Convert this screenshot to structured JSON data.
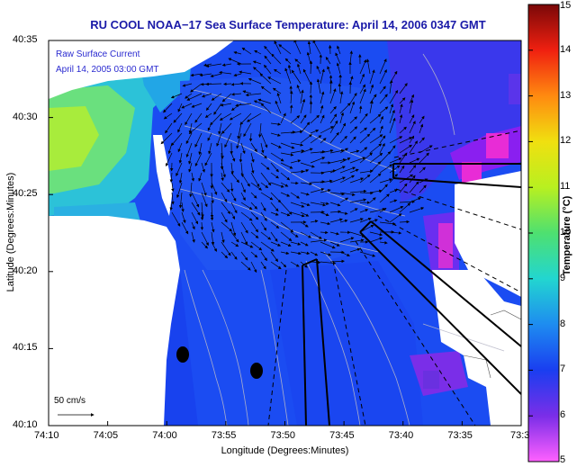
{
  "title": "RU COOL  NOAA−17  Sea Surface Temperature:  April 14, 2006 0347 GMT",
  "legend": {
    "line1": "Raw Surface Current",
    "line2": "April 14, 2005 03:00 GMT",
    "scale_label": "50 cm/s"
  },
  "axes": {
    "xlabel": "Longitude (Degrees:Minutes)",
    "ylabel": "Latitude (Degrees:Minutes)",
    "x_ticks": [
      "74:10",
      "74:05",
      "74:00",
      "73:55",
      "73:50",
      "73:45",
      "73:40",
      "73:35",
      "73:3"
    ],
    "y_ticks": [
      "40:35",
      "40:30",
      "40:25",
      "40:20",
      "40:15",
      "40:10"
    ]
  },
  "colorbar": {
    "label": "Temperature (°C)",
    "ticks": [
      "15",
      "14",
      "13",
      "12",
      "11",
      "10",
      "9",
      "8",
      "7",
      "6",
      "5"
    ],
    "range": [
      5,
      15
    ]
  },
  "colors": {
    "land": "#ffffff",
    "title": "#1a1aa8",
    "legend_text": "#2a2ad0",
    "ocean_base": "#1b4cf2",
    "plume": "#8a1ff0",
    "hotspot": "#e82cd6"
  }
}
